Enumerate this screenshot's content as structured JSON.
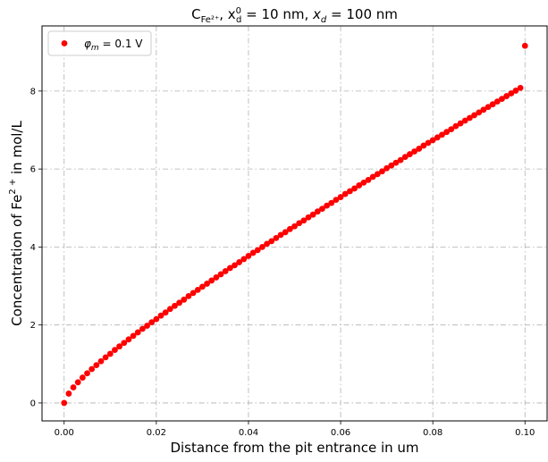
{
  "chart_data": {
    "type": "scatter",
    "title": {
      "base": "C",
      "sub": "Fe²⁺",
      "mid": ",  x",
      "mid_sup": "0",
      "mid_sub": "d",
      "mid_rest": " = 10 nm,  ",
      "x_var": "x",
      "x_var_sub": "d",
      "end": " = 100 nm"
    },
    "xlabel": "Distance from the pit entrance in um",
    "ylabel": {
      "prefix": "Concentration of Fe",
      "sup": "2 +",
      "suffix": " in mol/L"
    },
    "xlim": [
      -0.0048,
      0.1048
    ],
    "ylim": [
      -0.46,
      9.67
    ],
    "x_ticks": [
      0.0,
      0.02,
      0.04,
      0.06,
      0.08,
      0.1
    ],
    "x_tick_labels": [
      "0.00",
      "0.02",
      "0.04",
      "0.06",
      "0.08",
      "0.10"
    ],
    "y_ticks": [
      0,
      2,
      4,
      6,
      8
    ],
    "y_tick_labels": [
      "0",
      "2",
      "4",
      "6",
      "8"
    ],
    "grid": true,
    "legend_position": "upper-left",
    "series": [
      {
        "name": "φm = 0.1 V",
        "legend": {
          "symbol": "φ",
          "sub": "m",
          "rest": " = 0.1 V"
        },
        "color": "#ff0000",
        "marker": "circle",
        "x": [
          0.0,
          0.001,
          0.002,
          0.003,
          0.004,
          0.005,
          0.006,
          0.007,
          0.008,
          0.009,
          0.01,
          0.011,
          0.012,
          0.013,
          0.014,
          0.015,
          0.016,
          0.017,
          0.018,
          0.019,
          0.02,
          0.021,
          0.022,
          0.023,
          0.024,
          0.025,
          0.026,
          0.027,
          0.028,
          0.029,
          0.03,
          0.031,
          0.032,
          0.033,
          0.034,
          0.035,
          0.036,
          0.037,
          0.038,
          0.039,
          0.04,
          0.041,
          0.042,
          0.043,
          0.044,
          0.045,
          0.046,
          0.047,
          0.048,
          0.049,
          0.05,
          0.051,
          0.052,
          0.053,
          0.054,
          0.055,
          0.056,
          0.057,
          0.058,
          0.059,
          0.06,
          0.061,
          0.062,
          0.063,
          0.064,
          0.065,
          0.066,
          0.067,
          0.068,
          0.069,
          0.07,
          0.071,
          0.072,
          0.073,
          0.074,
          0.075,
          0.076,
          0.077,
          0.078,
          0.079,
          0.08,
          0.081,
          0.082,
          0.083,
          0.084,
          0.085,
          0.086,
          0.087,
          0.088,
          0.089,
          0.09,
          0.091,
          0.092,
          0.093,
          0.094,
          0.095,
          0.096,
          0.097,
          0.098,
          0.099,
          0.1
        ],
        "y": [
          0.0,
          0.24,
          0.4,
          0.53,
          0.65,
          0.76,
          0.87,
          0.97,
          1.07,
          1.17,
          1.26,
          1.36,
          1.45,
          1.54,
          1.63,
          1.72,
          1.81,
          1.9,
          1.98,
          2.07,
          2.15,
          2.24,
          2.32,
          2.41,
          2.49,
          2.57,
          2.65,
          2.74,
          2.82,
          2.9,
          2.98,
          3.06,
          3.14,
          3.22,
          3.3,
          3.38,
          3.46,
          3.53,
          3.61,
          3.69,
          3.77,
          3.85,
          3.92,
          4.0,
          4.08,
          4.15,
          4.23,
          4.31,
          4.38,
          4.46,
          4.53,
          4.61,
          4.68,
          4.76,
          4.83,
          4.91,
          4.98,
          5.06,
          5.13,
          5.21,
          5.28,
          5.36,
          5.43,
          5.5,
          5.58,
          5.65,
          5.72,
          5.8,
          5.87,
          5.94,
          6.02,
          6.09,
          6.16,
          6.23,
          6.31,
          6.38,
          6.45,
          6.52,
          6.6,
          6.67,
          6.74,
          6.81,
          6.88,
          6.95,
          7.02,
          7.1,
          7.17,
          7.24,
          7.31,
          7.38,
          7.45,
          7.52,
          7.59,
          7.66,
          7.73,
          7.8,
          7.87,
          7.94,
          8.01,
          8.08,
          9.16
        ]
      }
    ]
  }
}
